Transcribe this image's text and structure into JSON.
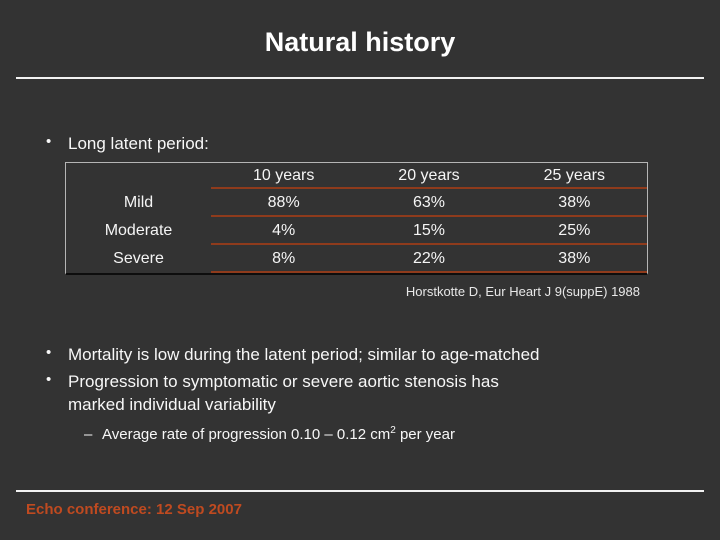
{
  "title": "Natural history",
  "intro_bullet": "Long latent period:",
  "table": {
    "col_headers": [
      "10 years",
      "20 years",
      "25 years"
    ],
    "rows": [
      {
        "label": "Mild",
        "values": [
          "88%",
          "63%",
          "38%"
        ]
      },
      {
        "label": "Moderate",
        "values": [
          "4%",
          "15%",
          "25%"
        ]
      },
      {
        "label": "Severe",
        "values": [
          "8%",
          "22%",
          "38%"
        ]
      }
    ]
  },
  "citation": "Horstkotte D, Eur Heart J 9(suppE) 1988",
  "bullet_mortality": "Mortality is low during the latent period; similar to age-matched",
  "bullet_progression": {
    "line1": "Progression to symptomatic or severe aortic stenosis has",
    "line2": "marked individual variability"
  },
  "sub_bullet_average": {
    "pre": "Average rate of progression 0.10 – 0.12 cm",
    "sup": "2",
    "post": " per year"
  },
  "footer": "Echo conference: 12 Sep 2007",
  "glyphs": {
    "bullet": "•",
    "dash": "–"
  },
  "colors": {
    "background": "#333333",
    "text": "#ffffff",
    "divider": "#f2f2f2",
    "table_rule": "#8f3b1c",
    "footer_text": "#bf4a20"
  }
}
